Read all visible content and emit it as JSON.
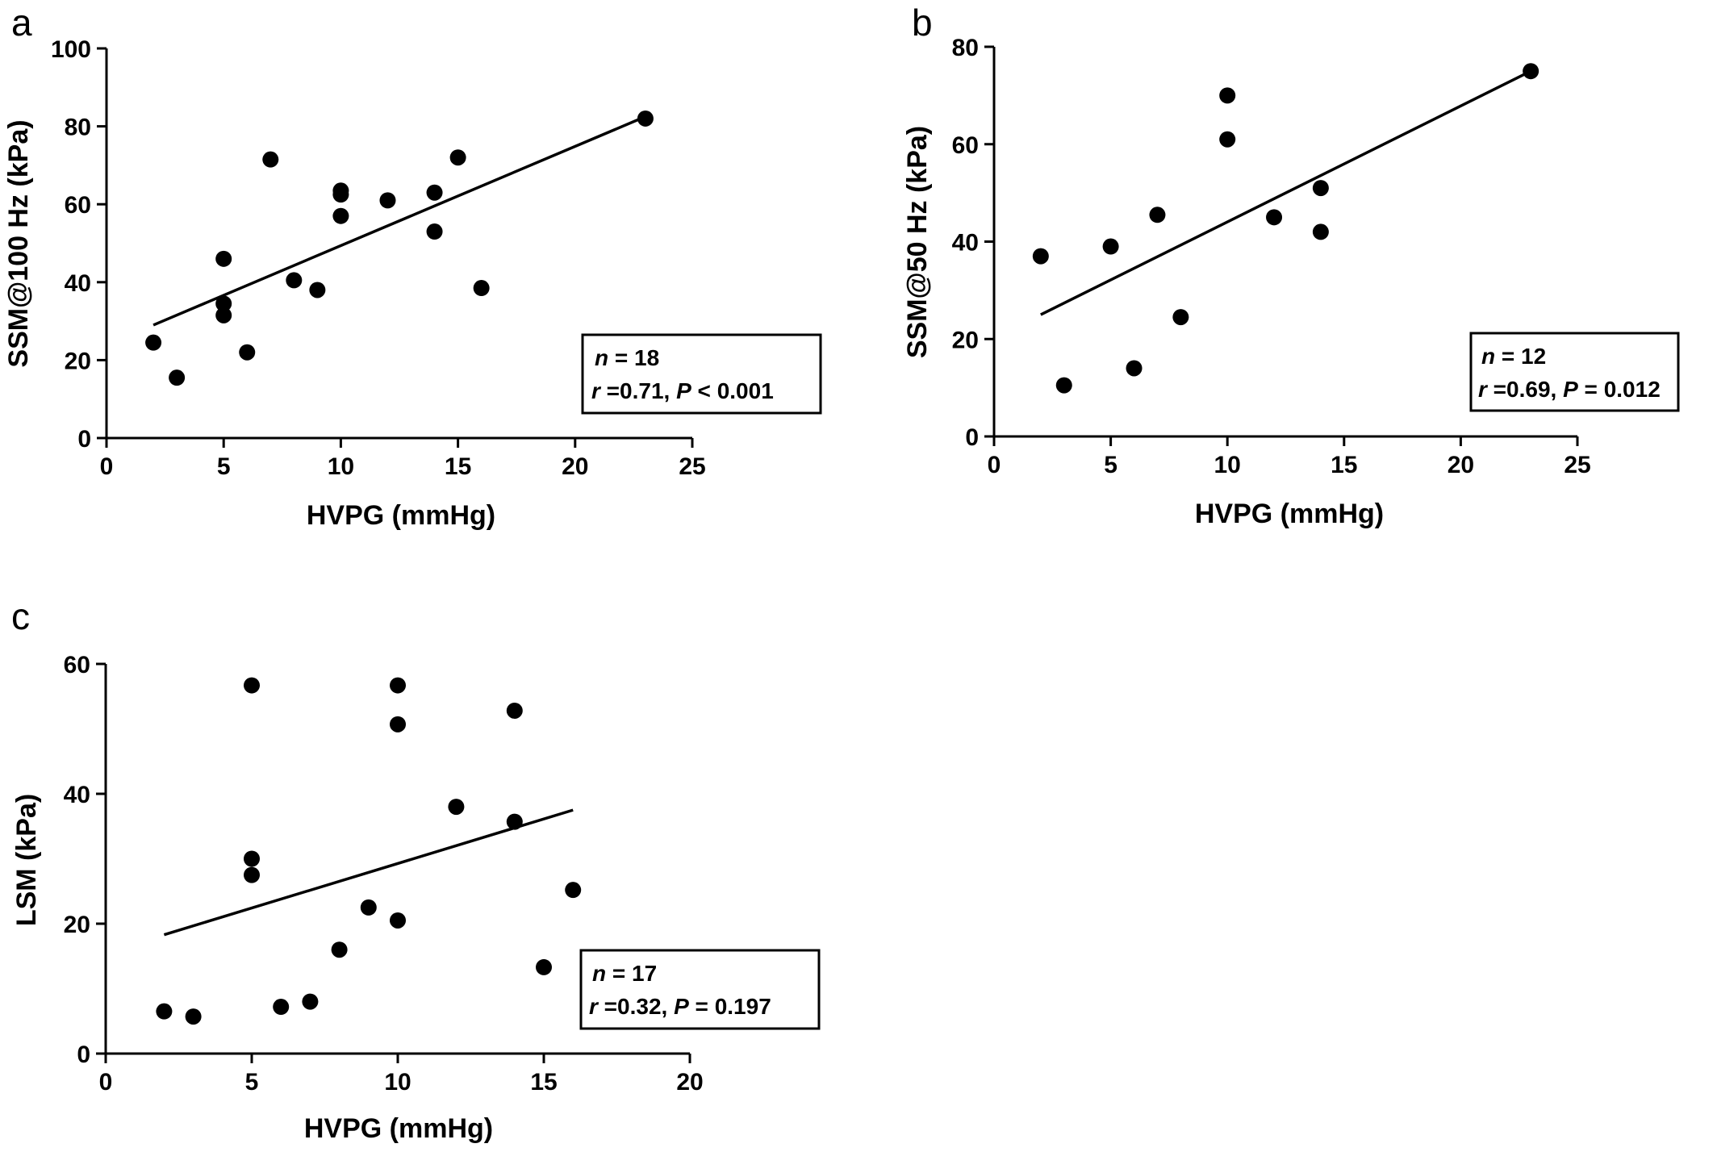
{
  "chart_data": [
    {
      "type": "scatter",
      "panel": "a",
      "xlabel": "HVPG (mmHg)",
      "ylabel": "SSM@100 Hz (kPa)",
      "xlim": [
        0,
        25
      ],
      "ylim": [
        0,
        100
      ],
      "xticks": [
        0,
        5,
        10,
        15,
        20,
        25
      ],
      "yticks": [
        0,
        20,
        40,
        60,
        80,
        100
      ],
      "points": [
        [
          2,
          24.5
        ],
        [
          3,
          15.5
        ],
        [
          5,
          46
        ],
        [
          5,
          34.5
        ],
        [
          5,
          31.5
        ],
        [
          6,
          22
        ],
        [
          7,
          71.5
        ],
        [
          8,
          40.5
        ],
        [
          9,
          38
        ],
        [
          10,
          63.5
        ],
        [
          10,
          62.5
        ],
        [
          10,
          57
        ],
        [
          12,
          61
        ],
        [
          14,
          63
        ],
        [
          14,
          53
        ],
        [
          15,
          72
        ],
        [
          16,
          38.5
        ],
        [
          23,
          82
        ]
      ],
      "fit": [
        [
          2,
          29
        ],
        [
          23,
          82.5
        ]
      ],
      "annotation": {
        "n_label": "n",
        "n_value": " = 18",
        "r_label": "r",
        "r_value": " =0.71, ",
        "p_label": "P",
        "p_value": " < 0.001"
      }
    },
    {
      "type": "scatter",
      "panel": "b",
      "xlabel": "HVPG (mmHg)",
      "ylabel": "SSM@50 Hz (kPa)",
      "xlim": [
        0,
        25
      ],
      "ylim": [
        0,
        80
      ],
      "xticks": [
        0,
        5,
        10,
        15,
        20,
        25
      ],
      "yticks": [
        0,
        20,
        40,
        60,
        80
      ],
      "points": [
        [
          2,
          37
        ],
        [
          3,
          10.5
        ],
        [
          5,
          39
        ],
        [
          6,
          14
        ],
        [
          7,
          45.5
        ],
        [
          8,
          24.5
        ],
        [
          10,
          70
        ],
        [
          10,
          61
        ],
        [
          12,
          45
        ],
        [
          14,
          51
        ],
        [
          14,
          42
        ],
        [
          23,
          75
        ]
      ],
      "fit": [
        [
          2,
          25
        ],
        [
          23,
          75
        ]
      ],
      "annotation": {
        "n_label": "n",
        "n_value": " = 12",
        "r_label": "r",
        "r_value": " =0.69, ",
        "p_label": "P",
        "p_value": " = 0.012"
      }
    },
    {
      "type": "scatter",
      "panel": "c",
      "xlabel": "HVPG (mmHg)",
      "ylabel": "LSM (kPa)",
      "xlim": [
        0,
        20
      ],
      "ylim": [
        0,
        60
      ],
      "xticks": [
        0,
        5,
        10,
        15,
        20
      ],
      "yticks": [
        0,
        20,
        40,
        60
      ],
      "points": [
        [
          2,
          6.5
        ],
        [
          3,
          5.7
        ],
        [
          5,
          56.7
        ],
        [
          5,
          30
        ],
        [
          5,
          27.5
        ],
        [
          6,
          7.2
        ],
        [
          7,
          8
        ],
        [
          8,
          16
        ],
        [
          9,
          22.5
        ],
        [
          10,
          56.7
        ],
        [
          10,
          50.7
        ],
        [
          10,
          20.5
        ],
        [
          12,
          38
        ],
        [
          14,
          52.8
        ],
        [
          14,
          35.7
        ],
        [
          15,
          13.3
        ],
        [
          16,
          25.2
        ]
      ],
      "fit": [
        [
          2,
          18.3
        ],
        [
          16,
          37.5
        ]
      ],
      "annotation": {
        "n_label": "n",
        "n_value": " = 17",
        "r_label": "r",
        "r_value": " =0.32, ",
        "p_label": "P",
        "p_value": " = 0.197"
      }
    }
  ]
}
